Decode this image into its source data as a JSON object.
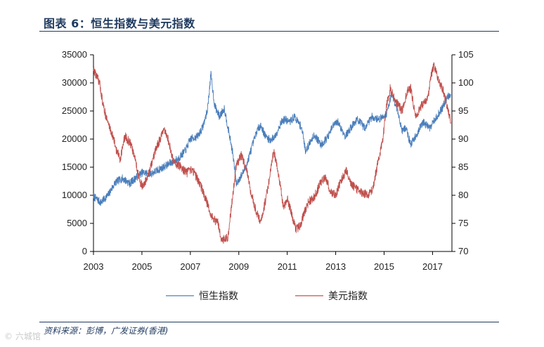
{
  "header": {
    "title": "图表 6：恒生指数与美元指数"
  },
  "footer": {
    "source": "资料来源：彭博，广发证券(香港)",
    "watermark": "©  六城馆"
  },
  "chart_data": {
    "type": "line",
    "title": "图表 6：恒生指数与美元指数",
    "x_range": [
      2003.0,
      2017.8
    ],
    "x_ticks": [
      "2003",
      "2005",
      "2007",
      "2009",
      "2011",
      "2013",
      "2015",
      "2017"
    ],
    "y_left": {
      "range": [
        0,
        35000
      ],
      "ticks": [
        "0",
        "5000",
        "10000",
        "15000",
        "20000",
        "25000",
        "30000",
        "35000"
      ]
    },
    "y_right": {
      "range": [
        70,
        105
      ],
      "ticks": [
        "70",
        "75",
        "80",
        "85",
        "90",
        "95",
        "100",
        "105"
      ]
    },
    "grid": false,
    "legend_position": "bottom",
    "colors": {
      "hsi": "#4a7ebb",
      "usd": "#c0504d"
    },
    "series": [
      {
        "name": "恒生指数",
        "axis": "left",
        "points": [
          [
            2003.0,
            9800
          ],
          [
            2003.3,
            8700
          ],
          [
            2003.6,
            10000
          ],
          [
            2003.9,
            12300
          ],
          [
            2004.2,
            13000
          ],
          [
            2004.5,
            12100
          ],
          [
            2004.8,
            13300
          ],
          [
            2005.0,
            14000
          ],
          [
            2005.4,
            13900
          ],
          [
            2005.8,
            14800
          ],
          [
            2006.2,
            15800
          ],
          [
            2006.5,
            16500
          ],
          [
            2006.8,
            18000
          ],
          [
            2007.0,
            20000
          ],
          [
            2007.3,
            20500
          ],
          [
            2007.5,
            22000
          ],
          [
            2007.7,
            25000
          ],
          [
            2007.85,
            31500
          ],
          [
            2008.0,
            26000
          ],
          [
            2008.2,
            24000
          ],
          [
            2008.4,
            25500
          ],
          [
            2008.6,
            21000
          ],
          [
            2008.75,
            17500
          ],
          [
            2008.9,
            12000
          ],
          [
            2009.1,
            13500
          ],
          [
            2009.3,
            15000
          ],
          [
            2009.5,
            18000
          ],
          [
            2009.75,
            21500
          ],
          [
            2009.9,
            22500
          ],
          [
            2010.1,
            20500
          ],
          [
            2010.3,
            19800
          ],
          [
            2010.5,
            20500
          ],
          [
            2010.75,
            23000
          ],
          [
            2010.9,
            23500
          ],
          [
            2011.1,
            23000
          ],
          [
            2011.3,
            24000
          ],
          [
            2011.6,
            22000
          ],
          [
            2011.75,
            18000
          ],
          [
            2011.9,
            19000
          ],
          [
            2012.1,
            20800
          ],
          [
            2012.4,
            19000
          ],
          [
            2012.7,
            20500
          ],
          [
            2012.9,
            22500
          ],
          [
            2013.1,
            23000
          ],
          [
            2013.4,
            20500
          ],
          [
            2013.7,
            22500
          ],
          [
            2013.9,
            23500
          ],
          [
            2014.2,
            22000
          ],
          [
            2014.5,
            24000
          ],
          [
            2014.75,
            23500
          ],
          [
            2014.9,
            23800
          ],
          [
            2015.1,
            24500
          ],
          [
            2015.3,
            28000
          ],
          [
            2015.5,
            26000
          ],
          [
            2015.75,
            21500
          ],
          [
            2015.9,
            22000
          ],
          [
            2016.1,
            19000
          ],
          [
            2016.3,
            20500
          ],
          [
            2016.6,
            23000
          ],
          [
            2016.9,
            22000
          ],
          [
            2017.1,
            23500
          ],
          [
            2017.4,
            25500
          ],
          [
            2017.6,
            27500
          ],
          [
            2017.75,
            28000
          ]
        ]
      },
      {
        "name": "美元指数",
        "axis": "right",
        "points": [
          [
            2003.0,
            102.5
          ],
          [
            2003.1,
            101.5
          ],
          [
            2003.25,
            100.0
          ],
          [
            2003.4,
            96.0
          ],
          [
            2003.55,
            93.5
          ],
          [
            2003.8,
            90.5
          ],
          [
            2003.95,
            88.0
          ],
          [
            2004.1,
            86.5
          ],
          [
            2004.3,
            90.5
          ],
          [
            2004.55,
            89.0
          ],
          [
            2004.75,
            86.0
          ],
          [
            2004.9,
            82.5
          ],
          [
            2005.05,
            81.5
          ],
          [
            2005.3,
            84.0
          ],
          [
            2005.6,
            88.5
          ],
          [
            2005.9,
            91.5
          ],
          [
            2006.05,
            90.5
          ],
          [
            2006.3,
            86.0
          ],
          [
            2006.6,
            85.0
          ],
          [
            2006.85,
            84.0
          ],
          [
            2007.1,
            84.5
          ],
          [
            2007.4,
            82.0
          ],
          [
            2007.7,
            78.5
          ],
          [
            2007.9,
            76.0
          ],
          [
            2008.15,
            75.0
          ],
          [
            2008.3,
            72.0
          ],
          [
            2008.55,
            72.5
          ],
          [
            2008.75,
            80.0
          ],
          [
            2008.9,
            85.5
          ],
          [
            2009.1,
            87.0
          ],
          [
            2009.3,
            85.0
          ],
          [
            2009.5,
            80.5
          ],
          [
            2009.7,
            77.5
          ],
          [
            2009.9,
            75.0
          ],
          [
            2010.1,
            79.0
          ],
          [
            2010.3,
            84.0
          ],
          [
            2010.45,
            88.0
          ],
          [
            2010.7,
            82.0
          ],
          [
            2010.85,
            77.5
          ],
          [
            2011.0,
            79.5
          ],
          [
            2011.2,
            76.5
          ],
          [
            2011.35,
            74.0
          ],
          [
            2011.55,
            74.5
          ],
          [
            2011.7,
            77.0
          ],
          [
            2011.9,
            79.0
          ],
          [
            2012.1,
            79.5
          ],
          [
            2012.4,
            82.5
          ],
          [
            2012.6,
            83.0
          ],
          [
            2012.8,
            80.5
          ],
          [
            2013.0,
            80.0
          ],
          [
            2013.2,
            82.5
          ],
          [
            2013.45,
            84.5
          ],
          [
            2013.65,
            82.0
          ],
          [
            2013.9,
            81.0
          ],
          [
            2014.1,
            80.5
          ],
          [
            2014.35,
            80.0
          ],
          [
            2014.55,
            81.5
          ],
          [
            2014.75,
            86.0
          ],
          [
            2014.95,
            90.0
          ],
          [
            2015.1,
            96.0
          ],
          [
            2015.25,
            99.0
          ],
          [
            2015.5,
            96.5
          ],
          [
            2015.75,
            95.0
          ],
          [
            2015.95,
            98.5
          ],
          [
            2016.1,
            99.0
          ],
          [
            2016.3,
            94.0
          ],
          [
            2016.55,
            96.0
          ],
          [
            2016.8,
            97.0
          ],
          [
            2016.95,
            101.5
          ],
          [
            2017.05,
            103.0
          ],
          [
            2017.25,
            100.5
          ],
          [
            2017.45,
            98.5
          ],
          [
            2017.6,
            96.0
          ],
          [
            2017.75,
            93.0
          ]
        ]
      }
    ]
  }
}
